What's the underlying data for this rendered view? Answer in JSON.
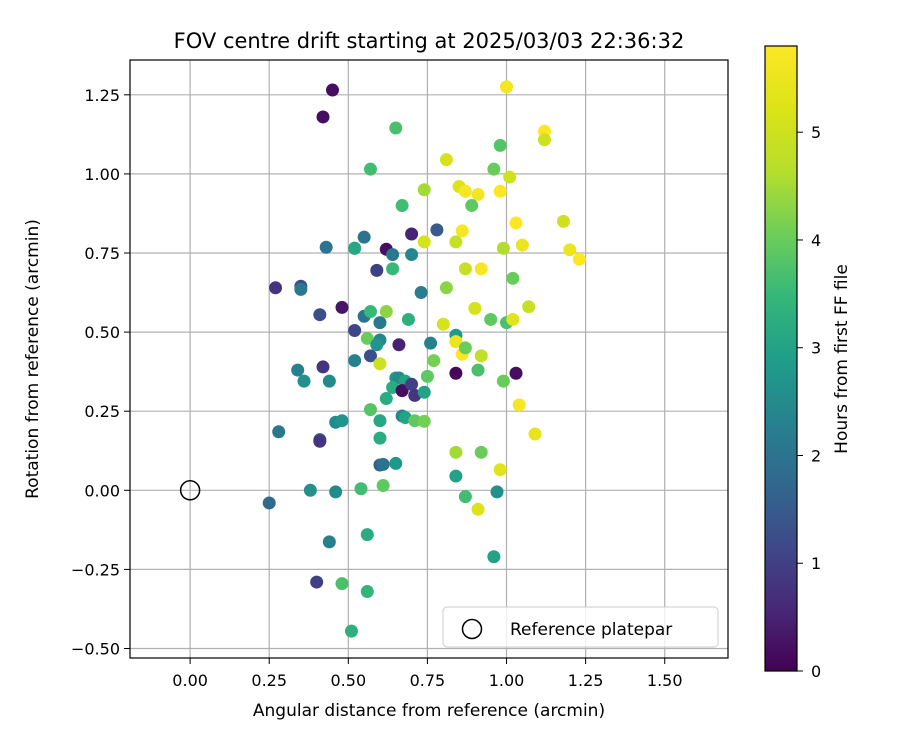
{
  "chart_data": {
    "type": "scatter",
    "title": "FOV centre drift starting at 2025/03/03 22:36:32",
    "xlabel": "Angular distance from reference (arcmin)",
    "ylabel": "Rotation from reference (arcmin)",
    "xlim": [
      -0.19,
      1.7
    ],
    "ylim": [
      -0.53,
      1.36
    ],
    "xticks": [
      0.0,
      0.25,
      0.5,
      0.75,
      1.0,
      1.25,
      1.5
    ],
    "xtick_labels": [
      "0.00",
      "0.25",
      "0.50",
      "0.75",
      "1.00",
      "1.25",
      "1.50"
    ],
    "yticks": [
      -0.5,
      -0.25,
      0.0,
      0.25,
      0.5,
      0.75,
      1.0,
      1.25
    ],
    "ytick_labels": [
      "−0.50",
      "−0.25",
      "0.00",
      "0.25",
      "0.50",
      "0.75",
      "1.00",
      "1.25"
    ],
    "grid": true,
    "colormap": "viridis",
    "colorbar": {
      "label": "Hours from first FF file",
      "range": [
        0,
        5.8
      ],
      "ticks": [
        0,
        1,
        2,
        3,
        4,
        5
      ],
      "tick_labels": [
        "0",
        "1",
        "2",
        "3",
        "4",
        "5"
      ]
    },
    "legend": {
      "placement": "lower right",
      "entries": [
        "Reference platepar"
      ]
    },
    "reference_point": {
      "x": 0.0,
      "y": 0.0,
      "label": "Reference platepar"
    },
    "points": [
      [
        0.45,
        1.265,
        0.2
      ],
      [
        0.42,
        1.18,
        0.2
      ],
      [
        0.65,
        1.145,
        3.7
      ],
      [
        1.0,
        1.275,
        5.6
      ],
      [
        1.12,
        1.135,
        5.8
      ],
      [
        1.12,
        1.108,
        5.0
      ],
      [
        0.98,
        1.09,
        3.8
      ],
      [
        0.96,
        1.015,
        4.0
      ],
      [
        1.01,
        0.99,
        5.0
      ],
      [
        0.81,
        1.045,
        5.1
      ],
      [
        0.85,
        0.96,
        5.2
      ],
      [
        0.87,
        0.945,
        5.7
      ],
      [
        0.91,
        0.935,
        5.6
      ],
      [
        0.98,
        0.945,
        5.8
      ],
      [
        0.89,
        0.9,
        3.9
      ],
      [
        0.57,
        1.015,
        3.6
      ],
      [
        0.74,
        0.95,
        4.5
      ],
      [
        0.67,
        0.9,
        3.6
      ],
      [
        0.86,
        0.82,
        5.7
      ],
      [
        0.84,
        0.785,
        4.9
      ],
      [
        0.74,
        0.785,
        5.1
      ],
      [
        0.78,
        0.823,
        1.5
      ],
      [
        0.52,
        0.765,
        3.6
      ],
      [
        0.43,
        0.768,
        2.0
      ],
      [
        0.55,
        0.8,
        2.0
      ],
      [
        0.62,
        0.762,
        0.2
      ],
      [
        0.64,
        0.745,
        2.1
      ],
      [
        0.7,
        0.81,
        0.5
      ],
      [
        0.7,
        0.745,
        2.4
      ],
      [
        0.64,
        0.7,
        3.5
      ],
      [
        0.59,
        0.695,
        1.0
      ],
      [
        0.52,
        0.765,
        3.1
      ],
      [
        1.03,
        0.845,
        5.8
      ],
      [
        0.99,
        0.765,
        4.6
      ],
      [
        1.05,
        0.775,
        5.5
      ],
      [
        1.18,
        0.85,
        5.0
      ],
      [
        1.2,
        0.76,
        5.5
      ],
      [
        1.23,
        0.73,
        5.8
      ],
      [
        0.87,
        0.7,
        4.9
      ],
      [
        0.92,
        0.7,
        5.7
      ],
      [
        1.02,
        0.67,
        4.0
      ],
      [
        0.27,
        0.64,
        0.8
      ],
      [
        0.35,
        0.645,
        1.3
      ],
      [
        0.35,
        0.635,
        2.1
      ],
      [
        0.41,
        0.555,
        1.3
      ],
      [
        0.48,
        0.578,
        0.3
      ],
      [
        0.52,
        0.505,
        1.1
      ],
      [
        0.55,
        0.55,
        2.0
      ],
      [
        0.57,
        0.565,
        3.5
      ],
      [
        0.56,
        0.48,
        4.0
      ],
      [
        0.6,
        0.53,
        2.1
      ],
      [
        0.62,
        0.565,
        4.3
      ],
      [
        0.6,
        0.475,
        2.4
      ],
      [
        0.59,
        0.46,
        2.7
      ],
      [
        0.66,
        0.46,
        0.5
      ],
      [
        0.69,
        0.54,
        3.3
      ],
      [
        0.73,
        0.625,
        2.2
      ],
      [
        0.81,
        0.64,
        4.3
      ],
      [
        0.8,
        0.525,
        5.1
      ],
      [
        0.84,
        0.49,
        2.8
      ],
      [
        0.84,
        0.47,
        5.5
      ],
      [
        0.86,
        0.43,
        5.8
      ],
      [
        0.87,
        0.45,
        4.0
      ],
      [
        0.9,
        0.575,
        5.1
      ],
      [
        0.95,
        0.54,
        3.9
      ],
      [
        1.0,
        0.53,
        3.7
      ],
      [
        1.02,
        0.54,
        5.3
      ],
      [
        1.07,
        0.58,
        4.9
      ],
      [
        0.76,
        0.465,
        2.3
      ],
      [
        0.77,
        0.41,
        4.1
      ],
      [
        0.57,
        0.425,
        1.3
      ],
      [
        0.52,
        0.41,
        2.3
      ],
      [
        0.6,
        0.4,
        5.0
      ],
      [
        0.42,
        0.39,
        0.8
      ],
      [
        0.34,
        0.38,
        2.3
      ],
      [
        0.36,
        0.345,
        2.6
      ],
      [
        0.44,
        0.345,
        2.5
      ],
      [
        0.65,
        0.355,
        2.8
      ],
      [
        0.66,
        0.355,
        2.5
      ],
      [
        0.68,
        0.345,
        3.0
      ],
      [
        0.64,
        0.325,
        3.2
      ],
      [
        0.67,
        0.315,
        0.2
      ],
      [
        0.7,
        0.335,
        1.0
      ],
      [
        0.71,
        0.3,
        0.8
      ],
      [
        0.74,
        0.31,
        3.0
      ],
      [
        0.75,
        0.36,
        3.9
      ],
      [
        0.62,
        0.29,
        3.2
      ],
      [
        0.84,
        0.37,
        0.1
      ],
      [
        0.92,
        0.425,
        4.8
      ],
      [
        0.91,
        0.38,
        3.7
      ],
      [
        0.99,
        0.345,
        4.0
      ],
      [
        1.03,
        0.37,
        0.2
      ],
      [
        1.04,
        0.27,
        5.7
      ],
      [
        1.09,
        0.178,
        5.4
      ],
      [
        0.28,
        0.185,
        2.1
      ],
      [
        0.41,
        0.16,
        1.5
      ],
      [
        0.41,
        0.155,
        0.8
      ],
      [
        0.46,
        0.215,
        2.5
      ],
      [
        0.48,
        0.22,
        2.7
      ],
      [
        0.57,
        0.255,
        3.8
      ],
      [
        0.6,
        0.22,
        3.1
      ],
      [
        0.67,
        0.235,
        2.4
      ],
      [
        0.68,
        0.23,
        3.0
      ],
      [
        0.71,
        0.22,
        3.9
      ],
      [
        0.74,
        0.218,
        4.1
      ],
      [
        0.6,
        0.165,
        3.2
      ],
      [
        0.6,
        0.08,
        1.6
      ],
      [
        0.61,
        0.082,
        2.0
      ],
      [
        0.65,
        0.085,
        2.8
      ],
      [
        0.84,
        0.12,
        4.5
      ],
      [
        0.92,
        0.12,
        4.0
      ],
      [
        0.98,
        0.065,
        5.3
      ],
      [
        0.84,
        0.045,
        3.0
      ],
      [
        0.38,
        0.0,
        2.6
      ],
      [
        0.46,
        -0.005,
        2.5
      ],
      [
        0.54,
        0.005,
        3.6
      ],
      [
        0.61,
        0.015,
        3.9
      ],
      [
        0.87,
        -0.02,
        3.6
      ],
      [
        0.91,
        -0.06,
        5.2
      ],
      [
        0.97,
        -0.005,
        2.6
      ],
      [
        0.25,
        -0.04,
        1.8
      ],
      [
        0.44,
        -0.163,
        2.3
      ],
      [
        0.56,
        -0.14,
        3.2
      ],
      [
        0.96,
        -0.21,
        3.0
      ],
      [
        0.4,
        -0.29,
        1.0
      ],
      [
        0.48,
        -0.295,
        3.7
      ],
      [
        0.56,
        -0.32,
        3.4
      ],
      [
        0.51,
        -0.445,
        3.3
      ]
    ]
  }
}
